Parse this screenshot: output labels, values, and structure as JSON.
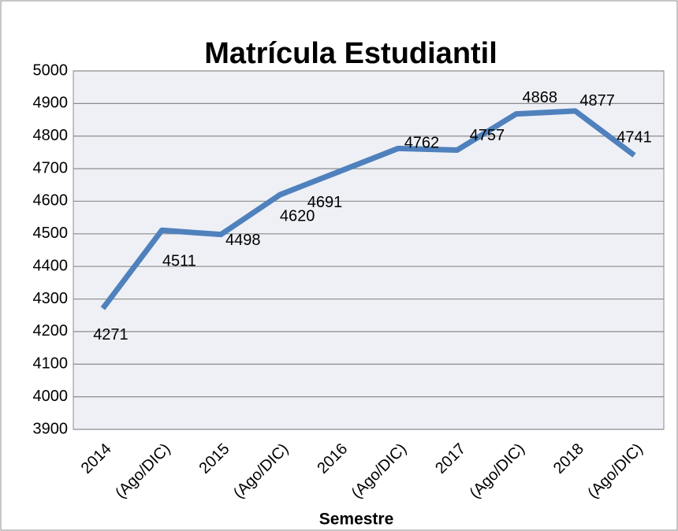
{
  "chart_data": {
    "type": "line",
    "title": "Matrícula Estudiantil",
    "x_label": "Semestre",
    "categories": [
      "2014",
      "(Ago/DIC)",
      "2015",
      "(Ago/DIC)",
      "2016",
      "(Ago/DIC)",
      "2017",
      "(Ago/DIC)",
      "2018",
      "(Ago/DIC)"
    ],
    "values": [
      4271,
      4511,
      4498,
      4620,
      4691,
      4762,
      4757,
      4868,
      4877,
      4741
    ],
    "color": "#4f81bd",
    "ylim": [
      3900,
      5000
    ],
    "yticks": [
      3900,
      4000,
      4100,
      4200,
      4300,
      4400,
      4500,
      4600,
      4700,
      4800,
      4900,
      5000
    ],
    "grid": true
  }
}
